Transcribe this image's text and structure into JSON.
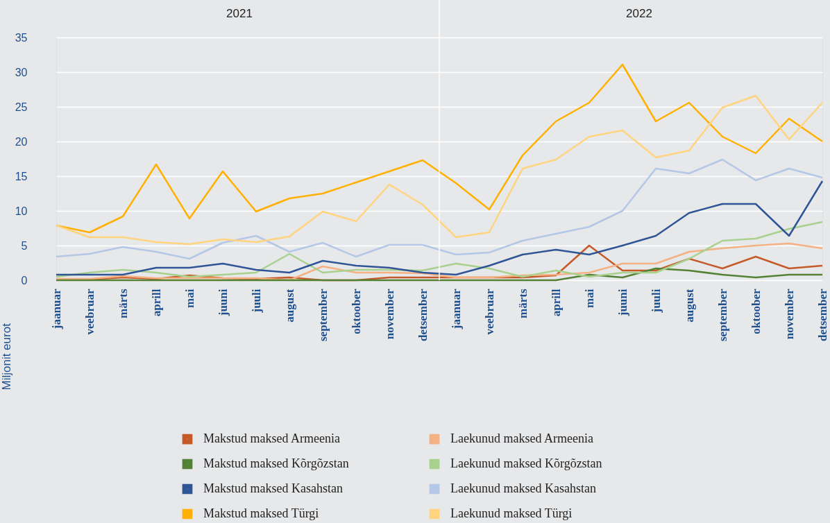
{
  "chart_data": {
    "type": "line",
    "categories": [
      "jaanuar",
      "veebruar",
      "märts",
      "aprill",
      "mai",
      "juuni",
      "juuli",
      "august",
      "september",
      "oktoober",
      "november",
      "detsember",
      "jaanuar",
      "veebruar",
      "märts",
      "aprill",
      "mai",
      "juuni",
      "juuli",
      "august",
      "september",
      "oktoober",
      "november",
      "detsember"
    ],
    "ylabel": "Miljonit eurot",
    "annotations": [
      "2021",
      "2022"
    ],
    "ylim": [
      0,
      35
    ],
    "yticks": [
      0,
      5,
      10,
      15,
      20,
      25,
      30,
      35
    ],
    "grid": "y",
    "legend": "bottom",
    "marker": "none",
    "line_style": "solid",
    "series": [
      {
        "name": "Makstud maksed Armeenia",
        "color": "#c55a28",
        "values": [
          0.1,
          0.1,
          0.4,
          0.2,
          0.7,
          0.3,
          0.2,
          0.4,
          0,
          0,
          0.4,
          0.4,
          0.4,
          0.4,
          0.4,
          0.7,
          5.0,
          1.4,
          1.4,
          3.1,
          1.7,
          3.4,
          1.7,
          2.1
        ]
      },
      {
        "name": "Laekunud maksed Armeenia",
        "color": "#f4b183",
        "values": [
          0.2,
          0.2,
          0.6,
          0.3,
          0.3,
          0.3,
          0.3,
          0,
          2.0,
          1.1,
          1.1,
          1.0,
          0.4,
          0.4,
          0.7,
          0.8,
          1.1,
          2.4,
          2.4,
          4.1,
          4.6,
          5.0,
          5.3,
          4.6
        ]
      },
      {
        "name": "Makstud maksed Kõrgõzstan",
        "color": "#548235",
        "values": [
          0,
          0,
          0,
          0,
          0,
          0,
          0,
          0,
          0,
          0,
          0,
          0,
          0,
          0,
          0,
          0,
          0.8,
          0.4,
          1.7,
          1.4,
          0.8,
          0.4,
          0.8,
          0.8
        ]
      },
      {
        "name": "Laekunud maksed Kõrgõzstan",
        "color": "#a9d18e",
        "values": [
          0.5,
          1.1,
          1.5,
          1.1,
          0.5,
          0.8,
          1.1,
          3.8,
          1.1,
          1.5,
          1.5,
          1.4,
          2.4,
          1.7,
          0.5,
          1.4,
          0.5,
          1.1,
          1.1,
          3.1,
          5.7,
          6.0,
          7.4,
          8.4
        ]
      },
      {
        "name": "Makstud maksed Kasahstan",
        "color": "#2f5597",
        "values": [
          0.8,
          0.8,
          0.8,
          1.8,
          1.8,
          2.4,
          1.5,
          1.1,
          2.8,
          2.1,
          1.8,
          1.1,
          0.8,
          2.1,
          3.7,
          4.4,
          3.7,
          5.0,
          6.4,
          9.7,
          11.0,
          11.0,
          6.4,
          14.3
        ]
      },
      {
        "name": "Laekunud maksed Kasahstan",
        "color": "#b4c7e7",
        "values": [
          3.4,
          3.8,
          4.8,
          4.1,
          3.1,
          5.4,
          6.4,
          4.1,
          5.4,
          3.4,
          5.1,
          5.1,
          3.7,
          4.0,
          5.7,
          6.7,
          7.7,
          10.0,
          16.1,
          15.4,
          17.4,
          14.4,
          16.1,
          14.8
        ]
      },
      {
        "name": "Makstud maksed Türgi",
        "color": "#ffb000",
        "values": [
          7.9,
          6.9,
          9.2,
          16.7,
          8.9,
          15.7,
          9.9,
          11.8,
          12.5,
          14.1,
          15.7,
          17.3,
          14.0,
          10.2,
          18.0,
          22.9,
          25.6,
          31.1,
          22.9,
          25.6,
          20.7,
          18.3,
          23.3,
          20.0
        ]
      },
      {
        "name": "Laekunud maksed Türgi",
        "color": "#ffd47f",
        "values": [
          7.9,
          6.2,
          6.2,
          5.5,
          5.2,
          5.9,
          5.5,
          6.3,
          9.9,
          8.5,
          13.8,
          10.9,
          6.2,
          6.9,
          16.1,
          17.4,
          20.7,
          21.6,
          17.7,
          18.7,
          24.9,
          26.6,
          20.3,
          25.6
        ]
      }
    ]
  }
}
